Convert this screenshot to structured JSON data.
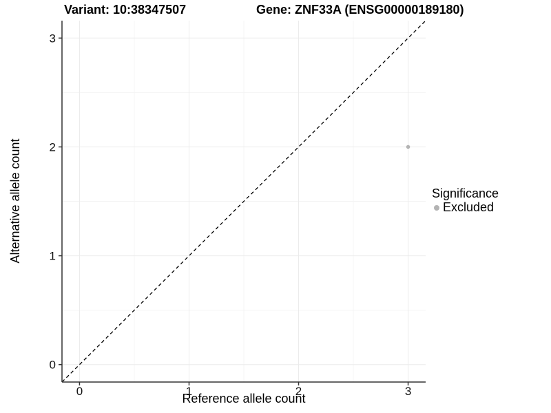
{
  "titles": {
    "variant": "Variant: 10:38347507",
    "gene": "Gene: ZNF33A (ENSG00000189180)"
  },
  "legend": {
    "title": "Significance",
    "items": [
      {
        "label": "Excluded",
        "color": "#b3b3b3"
      }
    ]
  },
  "chart_data": {
    "type": "scatter",
    "title_left": "Variant: 10:38347507",
    "title_right": "Gene: ZNF33A (ENSG00000189180)",
    "xlabel": "Reference allele count",
    "ylabel": "Alternative allele count",
    "xlim": [
      -0.16,
      3.16
    ],
    "ylim": [
      -0.16,
      3.16
    ],
    "xticks": [
      0,
      1,
      2,
      3
    ],
    "yticks": [
      0,
      1,
      2,
      3
    ],
    "xticks_minor": [
      0.5,
      1.5,
      2.5
    ],
    "yticks_minor": [
      0.5,
      1.5,
      2.5
    ],
    "grid": "major+minor",
    "legend_position": "right",
    "legend_title": "Significance",
    "identity_line": {
      "type": "abline",
      "slope": 1,
      "intercept": 0,
      "linetype": "dashed",
      "color": "#000000"
    },
    "series": [
      {
        "name": "Excluded",
        "color": "#b3b3b3",
        "points": [
          [
            3,
            2
          ]
        ]
      }
    ],
    "colors": {
      "grid_major": "#ebebeb",
      "grid_minor": "#f4f4f4",
      "axis": "#333333",
      "tick_label": "#111111"
    }
  }
}
